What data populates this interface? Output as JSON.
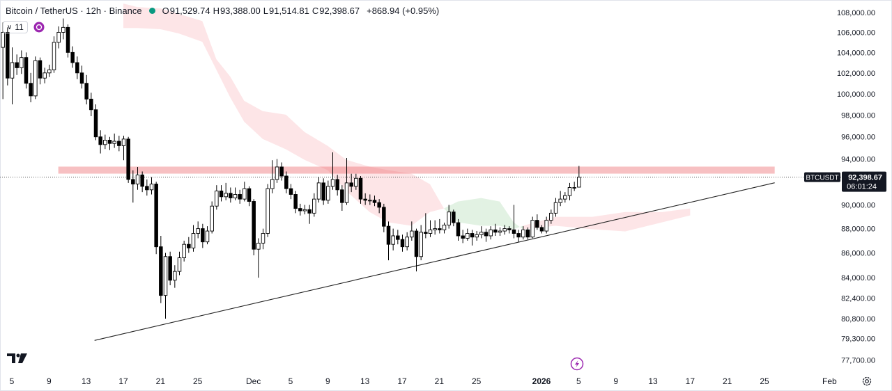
{
  "chart_data": {
    "type": "candlestick",
    "title": "Bitcoin / TetherUS · 12h · Binance",
    "ohlc": [
      {
        "key": "O",
        "value": "91,529.74"
      },
      {
        "key": "H",
        "value": "93,388.00"
      },
      {
        "key": "L",
        "value": "91,514.81"
      },
      {
        "key": "C",
        "value": "92,398.67"
      }
    ],
    "change": "+868.94 (+0.95%)",
    "indicator_count": 11,
    "log_scale": true,
    "grid": false,
    "xlim": [
      -1.275,
      89.325
    ],
    "ylim": [
      76800,
      109300
    ],
    "xticks": [
      {
        "value": 0,
        "label": "5"
      },
      {
        "value": 4,
        "label": "9"
      },
      {
        "value": 8,
        "label": "13"
      },
      {
        "value": 12,
        "label": "17"
      },
      {
        "value": 16,
        "label": "21"
      },
      {
        "value": 20,
        "label": "25"
      },
      {
        "value": 26,
        "label": "Dec"
      },
      {
        "value": 30,
        "label": "5"
      },
      {
        "value": 34,
        "label": "9"
      },
      {
        "value": 38,
        "label": "13"
      },
      {
        "value": 42,
        "label": "17"
      },
      {
        "value": 46,
        "label": "21"
      },
      {
        "value": 50,
        "label": "25"
      },
      {
        "value": 57,
        "label": "2026"
      },
      {
        "value": 61,
        "label": "5"
      },
      {
        "value": 65,
        "label": "9"
      },
      {
        "value": 69,
        "label": "13"
      },
      {
        "value": 73,
        "label": "17"
      },
      {
        "value": 77,
        "label": "21"
      },
      {
        "value": 81,
        "label": "25"
      },
      {
        "value": 88,
        "label": "Feb"
      }
    ],
    "yticks": [
      {
        "value": 108000,
        "label": "108,000.00"
      },
      {
        "value": 106000,
        "label": "106,000.00"
      },
      {
        "value": 104000,
        "label": "104,000.00"
      },
      {
        "value": 102000,
        "label": "102,000.00"
      },
      {
        "value": 100000,
        "label": "100,000.00"
      },
      {
        "value": 98000,
        "label": "98,000.00"
      },
      {
        "value": 96000,
        "label": "96,000.00"
      },
      {
        "value": 94000,
        "label": "94,000.00"
      },
      {
        "value": 90000,
        "label": "90,000.00"
      },
      {
        "value": 88000,
        "label": "88,000.00"
      },
      {
        "value": 86000,
        "label": "86,000.00"
      },
      {
        "value": 84000,
        "label": "84,000.00"
      },
      {
        "value": 82400,
        "label": "82,400.00"
      },
      {
        "value": 80800,
        "label": "80,800.00"
      },
      {
        "value": 79300,
        "label": "79,300.00"
      },
      {
        "value": 77700,
        "label": "77,700.00"
      }
    ],
    "last_price": {
      "symbol": "BTCUSDT",
      "value": 92398.67,
      "label": "92,398.67",
      "countdown": "06:01:24"
    },
    "up_color": "#ffffff",
    "down_color": "#000000",
    "outline_color": "#000000",
    "zone": {
      "x": [
        5,
        82.1
      ],
      "values": [
        92710,
        93330
      ],
      "color": "rgba(235,90,95,0.38)"
    },
    "trendline": {
      "x": [
        8.9,
        82.1
      ],
      "values": [
        79150,
        91910
      ],
      "color": "#222222"
    },
    "cloud": {
      "x": [
        12,
        13.5,
        16,
        18,
        20.5,
        22,
        23.5,
        25,
        27,
        29.5,
        31.5,
        34,
        36,
        38.5,
        40.5,
        43,
        45,
        46.5,
        48,
        50.5,
        52.5,
        54,
        55,
        58.5,
        62.5,
        66,
        70,
        73
      ],
      "span_a": [
        106440,
        106440,
        106310,
        105880,
        105050,
        102320,
        99660,
        97390,
        95810,
        94870,
        93930,
        93010,
        91190,
        89400,
        88530,
        88240,
        89400,
        89700,
        90290,
        90590,
        90290,
        88530,
        87950,
        88240,
        87950,
        87770,
        88530,
        89110
      ],
      "span_b": [
        108930,
        108570,
        108430,
        107860,
        107140,
        103340,
        101650,
        99340,
        98370,
        98040,
        96440,
        95180,
        93930,
        93330,
        93010,
        92710,
        91790,
        89700,
        88530,
        88240,
        88240,
        87950,
        88240,
        88990,
        88990,
        89400,
        89400,
        89700
      ],
      "up_color": "rgba(76,175,80,0.16)",
      "down_color": "rgba(242,54,69,0.13)"
    },
    "x": [
      -1,
      -0.5,
      0,
      0.5,
      1,
      1.5,
      2,
      2.5,
      3,
      3.5,
      4,
      4.5,
      5,
      5.5,
      6,
      6.5,
      7,
      7.5,
      8,
      8.5,
      9,
      9.5,
      10,
      10.5,
      11,
      11.5,
      12,
      12.5,
      13,
      13.5,
      14,
      14.5,
      15,
      15.5,
      16,
      16.5,
      17,
      17.5,
      18,
      18.5,
      19,
      19.5,
      20,
      20.5,
      21,
      21.5,
      22,
      22.5,
      23,
      23.5,
      24,
      24.5,
      25,
      25.5,
      26,
      26.5,
      27,
      27.5,
      28,
      28.5,
      29,
      29.5,
      30,
      30.5,
      31,
      31.5,
      32,
      32.5,
      33,
      33.5,
      34,
      34.5,
      35,
      35.5,
      36,
      36.5,
      37,
      37.5,
      38,
      38.5,
      39,
      39.5,
      40,
      40.5,
      41,
      41.5,
      42,
      42.5,
      43,
      43.5,
      44,
      44.5,
      45,
      45.5,
      46,
      46.5,
      47,
      47.5,
      48,
      48.5,
      49,
      49.5,
      50,
      50.5,
      51,
      51.5,
      52,
      52.5,
      53,
      53.5,
      54,
      54.5,
      55,
      55.5,
      56,
      56.5,
      57,
      57.5,
      58,
      58.5,
      59,
      59.5,
      60,
      60.5,
      61
    ],
    "candles": [
      [
        104500,
        107000,
        99500,
        106000
      ],
      [
        106000,
        106500,
        100800,
        101500
      ],
      [
        101500,
        104500,
        99000,
        103000
      ],
      [
        103000,
        103800,
        101800,
        102500
      ],
      [
        102500,
        104200,
        101900,
        103500
      ],
      [
        103500,
        104000,
        100500,
        101000
      ],
      [
        101000,
        102000,
        99200,
        99800
      ],
      [
        99800,
        103600,
        99500,
        103200
      ],
      [
        103200,
        103500,
        100900,
        101500
      ],
      [
        101500,
        102500,
        101000,
        102000
      ],
      [
        102000,
        102800,
        101600,
        102300
      ],
      [
        102300,
        105600,
        102000,
        105000
      ],
      [
        105000,
        106600,
        104400,
        106000
      ],
      [
        106000,
        107400,
        105300,
        106500
      ],
      [
        106500,
        106800,
        103500,
        104000
      ],
      [
        104000,
        104600,
        102500,
        103000
      ],
      [
        103000,
        103600,
        101400,
        102000
      ],
      [
        102000,
        102700,
        100500,
        101000
      ],
      [
        101000,
        101800,
        99000,
        99500
      ],
      [
        99500,
        100100,
        97900,
        98500
      ],
      [
        98500,
        99000,
        95700,
        96000
      ],
      [
        96000,
        96600,
        94500,
        95300
      ],
      [
        95300,
        96200,
        94900,
        95700
      ],
      [
        95700,
        96000,
        94800,
        95400
      ],
      [
        95400,
        96300,
        95000,
        95600
      ],
      [
        95600,
        96100,
        94700,
        95200
      ],
      [
        95200,
        96100,
        93900,
        95800
      ],
      [
        95800,
        96000,
        91900,
        92200
      ],
      [
        92200,
        93000,
        90200,
        91800
      ],
      [
        91800,
        93300,
        91300,
        92600
      ],
      [
        92600,
        92900,
        91100,
        91600
      ],
      [
        91600,
        92200,
        90800,
        91300
      ],
      [
        91300,
        92400,
        90900,
        91800
      ],
      [
        91800,
        92000,
        85900,
        86500
      ],
      [
        86500,
        87400,
        82000,
        82600
      ],
      [
        82600,
        86000,
        80800,
        85700
      ],
      [
        85700,
        86100,
        83400,
        83800
      ],
      [
        83800,
        85000,
        83200,
        84500
      ],
      [
        84500,
        86100,
        84200,
        85600
      ],
      [
        85600,
        87000,
        85300,
        86700
      ],
      [
        86700,
        87300,
        86000,
        86400
      ],
      [
        86400,
        88300,
        86100,
        87600
      ],
      [
        87600,
        88600,
        87200,
        88000
      ],
      [
        88000,
        88400,
        86400,
        86900
      ],
      [
        86900,
        88200,
        86700,
        87800
      ],
      [
        87800,
        90300,
        87600,
        89900
      ],
      [
        89900,
        91700,
        89600,
        91200
      ],
      [
        91200,
        91700,
        90300,
        90700
      ],
      [
        90700,
        91900,
        90400,
        91000
      ],
      [
        91000,
        91500,
        90200,
        90600
      ],
      [
        90600,
        91500,
        90400,
        90900
      ],
      [
        90900,
        91300,
        90100,
        90500
      ],
      [
        90500,
        92000,
        90300,
        91400
      ],
      [
        91400,
        91600,
        89900,
        90300
      ],
      [
        90300,
        90500,
        85800,
        86300
      ],
      [
        86300,
        87200,
        84000,
        86800
      ],
      [
        86800,
        88000,
        86300,
        87600
      ],
      [
        87600,
        91800,
        87300,
        91400
      ],
      [
        91400,
        93900,
        91000,
        92200
      ],
      [
        92200,
        94000,
        91900,
        93300
      ],
      [
        93300,
        93700,
        92100,
        92500
      ],
      [
        92500,
        92900,
        91000,
        91400
      ],
      [
        91400,
        91800,
        90500,
        90900
      ],
      [
        90900,
        91200,
        89300,
        89700
      ],
      [
        89700,
        90100,
        89100,
        89500
      ],
      [
        89500,
        90000,
        89200,
        89600
      ],
      [
        89600,
        90000,
        88400,
        89300
      ],
      [
        89300,
        91000,
        89000,
        90500
      ],
      [
        90500,
        92400,
        90200,
        91900
      ],
      [
        91900,
        92300,
        90000,
        90400
      ],
      [
        90400,
        92100,
        90100,
        91600
      ],
      [
        91600,
        94600,
        91300,
        92200
      ],
      [
        92200,
        92600,
        90800,
        91300
      ],
      [
        91300,
        91700,
        89500,
        90200
      ],
      [
        90200,
        94100,
        90000,
        91900
      ],
      [
        91900,
        92700,
        91100,
        91600
      ],
      [
        91600,
        92700,
        91300,
        92300
      ],
      [
        92300,
        92500,
        90100,
        90500
      ],
      [
        90500,
        91000,
        90000,
        90400
      ],
      [
        90400,
        90900,
        90000,
        90400
      ],
      [
        90400,
        90800,
        89900,
        90200
      ],
      [
        90200,
        90500,
        89300,
        89800
      ],
      [
        89800,
        90100,
        87700,
        88200
      ],
      [
        88200,
        88600,
        85400,
        86700
      ],
      [
        86700,
        88000,
        86200,
        87400
      ],
      [
        87400,
        87900,
        86700,
        87100
      ],
      [
        87100,
        87500,
        86100,
        86500
      ],
      [
        86500,
        87700,
        86200,
        87300
      ],
      [
        87300,
        88600,
        87000,
        87800
      ],
      [
        87800,
        88000,
        84500,
        85700
      ],
      [
        85700,
        88300,
        85400,
        87700
      ],
      [
        87700,
        89300,
        87200,
        87600
      ],
      [
        87600,
        88700,
        87300,
        87900
      ],
      [
        87900,
        88700,
        87500,
        88000
      ],
      [
        88000,
        88800,
        87600,
        87900
      ],
      [
        87900,
        88500,
        87600,
        88300
      ],
      [
        88300,
        90000,
        88000,
        89400
      ],
      [
        89400,
        89600,
        88200,
        88500
      ],
      [
        88500,
        88800,
        87000,
        87400
      ],
      [
        87400,
        87900,
        86800,
        87200
      ],
      [
        87200,
        88000,
        87000,
        87600
      ],
      [
        87600,
        87900,
        86600,
        87300
      ],
      [
        87300,
        87800,
        87000,
        87500
      ],
      [
        87500,
        88200,
        87200,
        87700
      ],
      [
        87700,
        88000,
        86900,
        87400
      ],
      [
        87400,
        88200,
        87100,
        87900
      ],
      [
        87900,
        88400,
        87400,
        87700
      ],
      [
        87700,
        88100,
        87400,
        87800
      ],
      [
        87800,
        88300,
        87500,
        88000
      ],
      [
        88000,
        88200,
        87600,
        87900
      ],
      [
        87900,
        90000,
        87200,
        87600
      ],
      [
        87600,
        87900,
        86900,
        87300
      ],
      [
        87300,
        88200,
        87100,
        87900
      ],
      [
        87900,
        88100,
        87100,
        87300
      ],
      [
        87300,
        89000,
        87200,
        88700
      ],
      [
        88700,
        89200,
        87900,
        88100
      ],
      [
        88100,
        88300,
        87600,
        87800
      ],
      [
        87800,
        89000,
        87600,
        88700
      ],
      [
        88700,
        89600,
        88400,
        89300
      ],
      [
        89300,
        90600,
        89000,
        90200
      ],
      [
        90200,
        91200,
        89900,
        90500
      ],
      [
        90500,
        91100,
        90200,
        90800
      ],
      [
        90800,
        91900,
        90400,
        91500
      ],
      [
        91500,
        92000,
        91200,
        91500
      ],
      [
        91529.74,
        93388,
        91514.81,
        92398.67
      ]
    ]
  }
}
